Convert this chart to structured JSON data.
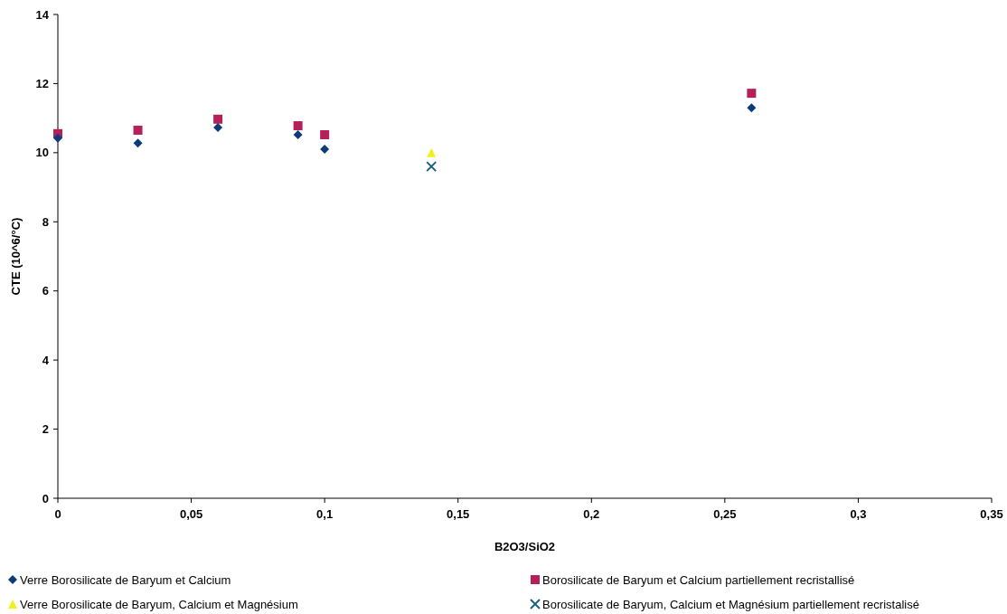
{
  "chart_data": {
    "type": "scatter",
    "xlabel": "B2O3/SiO2",
    "ylabel": "CTE (10^6/°C)",
    "xlim": [
      0,
      0.35
    ],
    "xticks": [
      0,
      {
        "value": 0.05,
        "label": "0,05"
      },
      {
        "value": 0.1,
        "label": "0,1"
      },
      {
        "value": 0.15,
        "label": "0,15"
      },
      {
        "value": 0.2,
        "label": "0,2"
      },
      {
        "value": 0.25,
        "label": "0,25"
      },
      {
        "value": 0.3,
        "label": "0,3"
      },
      {
        "value": 0.35,
        "label": "0,35"
      }
    ],
    "ylim": [
      0,
      14
    ],
    "yticks": [
      0,
      2,
      4,
      6,
      8,
      10,
      12,
      14
    ],
    "grid": false,
    "legend": "bottom",
    "series": [
      {
        "name": "Verre Borosilicate de Baryum et Calcium",
        "color": "#0d3b7a",
        "marker": "diamond",
        "x": [
          0,
          0.03,
          0.06,
          0.09,
          0.1,
          0.26
        ],
        "values": [
          10.42,
          10.28,
          10.73,
          10.52,
          10.1,
          11.3
        ]
      },
      {
        "name": "Borosilicate de Baryum et Calcium partiellement recristallisé",
        "color": "#b5205a",
        "marker": "square",
        "x": [
          0,
          0.03,
          0.06,
          0.09,
          0.1,
          0.26
        ],
        "values": [
          10.55,
          10.65,
          10.97,
          10.78,
          10.52,
          11.72
        ]
      },
      {
        "name": "Verre Borosilicate de Baryum, Calcium et Magnésium",
        "color": "#f0f020",
        "marker": "triangle",
        "x": [
          0.14
        ],
        "values": [
          10.0
        ]
      },
      {
        "name": "Borosilicate de Baryum, Calcium et Magnésium partiellement recristalisé",
        "color": "#1a6080",
        "marker": "cross",
        "x": [
          0.14
        ],
        "values": [
          9.6
        ]
      }
    ]
  }
}
